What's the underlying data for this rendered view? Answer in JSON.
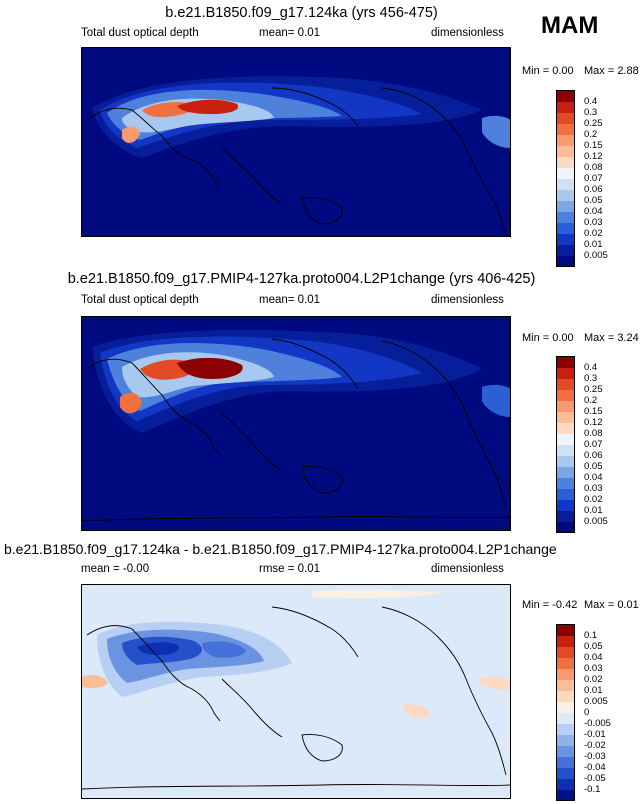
{
  "season": "MAM",
  "panels": [
    {
      "title": "b.e21.B1850.f09_g17.124ka (yrs 456-475)",
      "left_label": "Total dust optical depth",
      "center_label": "mean=   0.01",
      "right_label": "dimensionless",
      "min_text": "Min =   0.00",
      "max_text": "Max =   2.88",
      "levels": [
        "0.4",
        "0.3",
        "0.25",
        "0.2",
        "0.15",
        "0.12",
        "0.08",
        "0.07",
        "0.06",
        "0.05",
        "0.04",
        "0.03",
        "0.02",
        "0.01",
        "0.005"
      ],
      "colors": [
        "#8b0000",
        "#c8200e",
        "#e24a25",
        "#f0703f",
        "#f89a6e",
        "#fbbd98",
        "#fdd9c2",
        "#f2f4fb",
        "#d0e0f5",
        "#a9c8ef",
        "#7aa6e6",
        "#4d81dc",
        "#2a5fd6",
        "#1237c4",
        "#061e99",
        "#000a80"
      ]
    },
    {
      "title": "b.e21.B1850.f09_g17.PMIP4-127ka.proto004.L2P1change (yrs 406-425)",
      "left_label": "Total dust optical depth",
      "center_label": "mean=   0.01",
      "right_label": "dimensionless",
      "min_text": "Min =   0.00",
      "max_text": "Max =   3.24",
      "levels": [
        "0.4",
        "0.3",
        "0.25",
        "0.2",
        "0.15",
        "0.12",
        "0.08",
        "0.07",
        "0.06",
        "0.05",
        "0.04",
        "0.03",
        "0.02",
        "0.01",
        "0.005"
      ],
      "colors": [
        "#8b0000",
        "#c8200e",
        "#e24a25",
        "#f0703f",
        "#f89a6e",
        "#fbbd98",
        "#fdd9c2",
        "#f2f4fb",
        "#d0e0f5",
        "#a9c8ef",
        "#7aa6e6",
        "#4d81dc",
        "#2a5fd6",
        "#1237c4",
        "#061e99",
        "#000a80"
      ]
    },
    {
      "title": "b.e21.B1850.f09_g17.124ka - b.e21.B1850.f09_g17.PMIP4-127ka.proto004.L2P1change",
      "left_label": "mean =  -0.00",
      "center_label": "rmse =   0.01",
      "right_label": "dimensionless",
      "min_text": "Min = -0.42",
      "max_text": "Max =   0.01",
      "levels": [
        "0.1",
        "0.05",
        "0.04",
        "0.03",
        "0.02",
        "0.01",
        "0.005",
        "0",
        "-0.005",
        "-0.01",
        "-0.02",
        "-0.03",
        "-0.04",
        "-0.05",
        "-0.1"
      ],
      "colors": [
        "#8b0000",
        "#c8200e",
        "#e24a25",
        "#f0703f",
        "#f89a6e",
        "#fbbd98",
        "#fdd9c2",
        "#fbeee3",
        "#dce9f8",
        "#b6cff2",
        "#8eb2ea",
        "#6a93e2",
        "#4472da",
        "#2550cc",
        "#0d2fb3",
        "#00148a"
      ]
    }
  ]
}
